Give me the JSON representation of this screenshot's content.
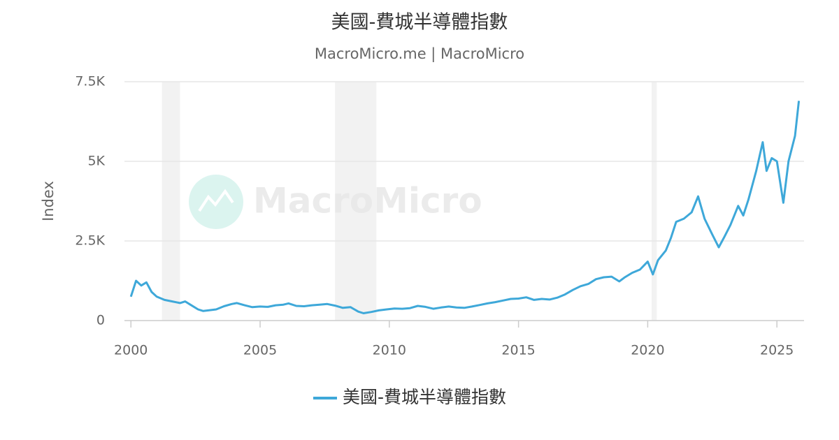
{
  "chart_data": {
    "type": "line",
    "title": "美國-費城半導體指數",
    "subtitle": "MacroMicro.me | MacroMicro",
    "watermark": "MacroMicro",
    "y_label": "Index",
    "x": [
      2000.0,
      2000.2,
      2000.4,
      2000.6,
      2000.8,
      2001.0,
      2001.3,
      2001.6,
      2001.9,
      2002.1,
      2002.3,
      2002.6,
      2002.8,
      2003.0,
      2003.3,
      2003.6,
      2003.9,
      2004.1,
      2004.4,
      2004.7,
      2005.0,
      2005.3,
      2005.6,
      2005.9,
      2006.1,
      2006.4,
      2006.7,
      2007.0,
      2007.3,
      2007.6,
      2007.9,
      2008.2,
      2008.5,
      2008.8,
      2009.0,
      2009.3,
      2009.6,
      2009.9,
      2010.2,
      2010.5,
      2010.8,
      2011.1,
      2011.4,
      2011.7,
      2012.0,
      2012.3,
      2012.6,
      2012.9,
      2013.2,
      2013.5,
      2013.8,
      2014.1,
      2014.4,
      2014.7,
      2015.0,
      2015.3,
      2015.6,
      2015.9,
      2016.2,
      2016.5,
      2016.8,
      2017.1,
      2017.4,
      2017.7,
      2018.0,
      2018.3,
      2018.6,
      2018.9,
      2019.1,
      2019.4,
      2019.7,
      2020.0,
      2020.2,
      2020.4,
      2020.7,
      2020.9,
      2021.1,
      2021.4,
      2021.7,
      2021.95,
      2022.2,
      2022.5,
      2022.75,
      2022.95,
      2023.2,
      2023.5,
      2023.7,
      2023.9,
      2024.2,
      2024.45,
      2024.6,
      2024.8,
      2025.0,
      2025.25,
      2025.45,
      2025.7,
      2025.85
    ],
    "series": [
      {
        "name": "美國-費城半導體指數",
        "color": "#3ea8d9",
        "values": [
          750,
          1250,
          1100,
          1200,
          900,
          750,
          650,
          600,
          550,
          600,
          500,
          350,
          300,
          320,
          350,
          450,
          520,
          550,
          480,
          420,
          440,
          430,
          480,
          500,
          540,
          460,
          450,
          480,
          500,
          520,
          470,
          400,
          420,
          280,
          230,
          270,
          320,
          350,
          380,
          370,
          390,
          460,
          430,
          370,
          410,
          440,
          410,
          400,
          440,
          490,
          540,
          580,
          630,
          680,
          690,
          730,
          650,
          680,
          660,
          720,
          820,
          960,
          1080,
          1150,
          1300,
          1360,
          1380,
          1230,
          1350,
          1500,
          1600,
          1850,
          1450,
          1900,
          2200,
          2600,
          3100,
          3200,
          3400,
          3900,
          3200,
          2700,
          2300,
          2600,
          3000,
          3600,
          3300,
          3800,
          4700,
          5600,
          4700,
          5100,
          5000,
          3700,
          5000,
          5800,
          6900
        ]
      }
    ],
    "shaded_ranges": [
      [
        2001.2,
        2001.9
      ],
      [
        2007.9,
        2009.5
      ],
      [
        2020.15,
        2020.35
      ]
    ],
    "shade_color": "#f2f2f2",
    "xlim": [
      1999.75,
      2026.05
    ],
    "xticks": [
      2000,
      2005,
      2010,
      2015,
      2020,
      2025
    ],
    "ylim": [
      0,
      7500
    ],
    "yticks": [
      0,
      {
        "value": 2500,
        "label": "2.5K"
      },
      {
        "value": 5000,
        "label": "5K"
      },
      {
        "value": 7500,
        "label": "7.5K"
      }
    ],
    "grid": true
  }
}
